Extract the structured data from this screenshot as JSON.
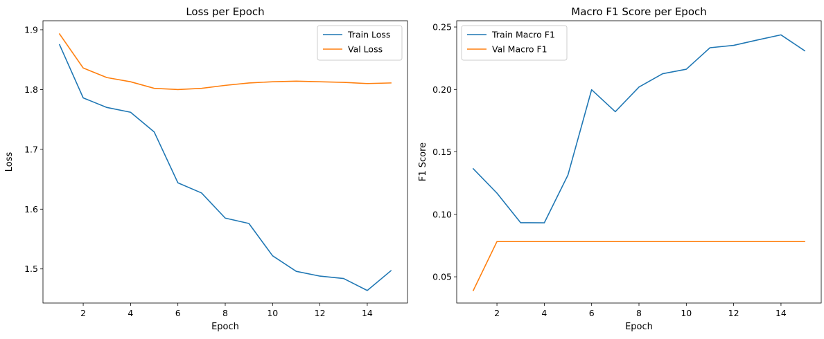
{
  "chart_data": [
    {
      "type": "line",
      "title": "Loss per Epoch",
      "xlabel": "Epoch",
      "ylabel": "Loss",
      "xlim": [
        0.3,
        15.7
      ],
      "ylim": [
        1.443,
        1.915
      ],
      "xticks": [
        2,
        4,
        6,
        8,
        10,
        12,
        14
      ],
      "yticks": [
        1.5,
        1.6,
        1.7,
        1.8,
        1.9
      ],
      "ytick_labels": [
        "1.5",
        "1.6",
        "1.7",
        "1.8",
        "1.9"
      ],
      "legend": "top-right",
      "x": [
        1,
        2,
        3,
        4,
        5,
        6,
        7,
        8,
        9,
        10,
        11,
        12,
        13,
        14,
        15
      ],
      "series": [
        {
          "name": "Train Loss",
          "color": "#1f77b4",
          "values": [
            1.875,
            1.786,
            1.77,
            1.762,
            1.729,
            1.644,
            1.627,
            1.585,
            1.576,
            1.522,
            1.496,
            1.488,
            1.484,
            1.464,
            1.497
          ]
        },
        {
          "name": "Val Loss",
          "color": "#ff7f0e",
          "values": [
            1.893,
            1.836,
            1.82,
            1.813,
            1.802,
            1.8,
            1.802,
            1.807,
            1.811,
            1.813,
            1.814,
            1.813,
            1.812,
            1.81,
            1.811
          ]
        }
      ]
    },
    {
      "type": "line",
      "title": "Macro F1 Score per Epoch",
      "xlabel": "Epoch",
      "ylabel": "F1 Score",
      "xlim": [
        0.3,
        15.7
      ],
      "ylim": [
        0.029,
        0.255
      ],
      "xticks": [
        2,
        4,
        6,
        8,
        10,
        12,
        14
      ],
      "yticks": [
        0.05,
        0.1,
        0.15,
        0.2,
        0.25
      ],
      "ytick_labels": [
        "0.05",
        "0.10",
        "0.15",
        "0.20",
        "0.25"
      ],
      "legend": "top-left",
      "x": [
        1,
        2,
        3,
        4,
        5,
        6,
        7,
        8,
        9,
        10,
        11,
        12,
        13,
        14,
        15
      ],
      "series": [
        {
          "name": "Train Macro F1",
          "color": "#1f77b4",
          "values": [
            0.1365,
            0.117,
            0.0933,
            0.0932,
            0.1315,
            0.1998,
            0.1822,
            0.2019,
            0.2126,
            0.2162,
            0.2334,
            0.2353,
            0.2396,
            0.2437,
            0.231
          ]
        },
        {
          "name": "Val Macro F1",
          "color": "#ff7f0e",
          "values": [
            0.039,
            0.0782,
            0.0782,
            0.0782,
            0.0782,
            0.0782,
            0.0782,
            0.0782,
            0.0782,
            0.0782,
            0.0782,
            0.0782,
            0.0782,
            0.0782,
            0.0782
          ]
        }
      ]
    }
  ]
}
